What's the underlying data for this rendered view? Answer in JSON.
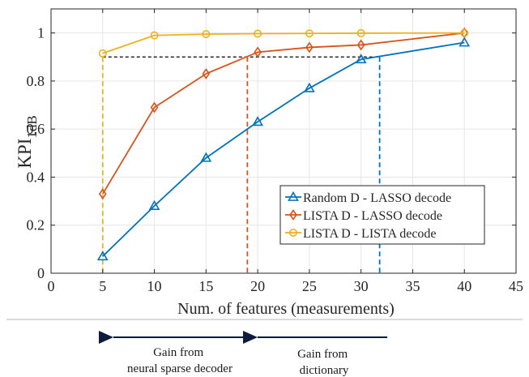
{
  "chart_data": {
    "type": "line",
    "xlabel": "Num. of features (measurements)",
    "ylabel_main": "KPI",
    "ylabel_sub": "1dB",
    "xlim": [
      0,
      45
    ],
    "ylim": [
      0,
      1.1
    ],
    "xticks": [
      0,
      5,
      10,
      15,
      20,
      25,
      30,
      35,
      40,
      45
    ],
    "yticks": [
      0,
      0.2,
      0.4,
      0.6,
      0.8,
      1
    ],
    "ytick_labels": [
      "0",
      "0.2",
      "0.4",
      "0.6",
      "0.8",
      "1"
    ],
    "grid": true,
    "legend_position": "lower-right",
    "x": [
      5,
      10,
      15,
      20,
      25,
      30,
      40
    ],
    "series": [
      {
        "name": "Random D - LASSO decode",
        "color": "#0072BD",
        "marker": "triangle",
        "values": [
          0.07,
          0.28,
          0.48,
          0.63,
          0.77,
          0.89,
          0.96
        ]
      },
      {
        "name": "LISTA D - LASSO decode",
        "color": "#D95319",
        "marker": "diamond",
        "values": [
          0.33,
          0.69,
          0.83,
          0.92,
          0.94,
          0.95,
          1.0
        ]
      },
      {
        "name": "LISTA D - LISTA decode",
        "color": "#EDB120",
        "marker": "circle",
        "values": [
          0.915,
          0.99,
          0.995,
          0.997,
          0.998,
          0.999,
          1.0
        ]
      }
    ],
    "reference": {
      "threshold": 0.9,
      "crossings": [
        {
          "x": 5,
          "color": "#EDB120"
        },
        {
          "x": 19,
          "color": "#D95319"
        },
        {
          "x": 31.8,
          "color": "#0072BD"
        }
      ]
    }
  },
  "annotations": {
    "gain_decoder": [
      "Gain from",
      "neural sparse decoder"
    ],
    "gain_dictionary": [
      "Gain from",
      "dictionary"
    ]
  }
}
